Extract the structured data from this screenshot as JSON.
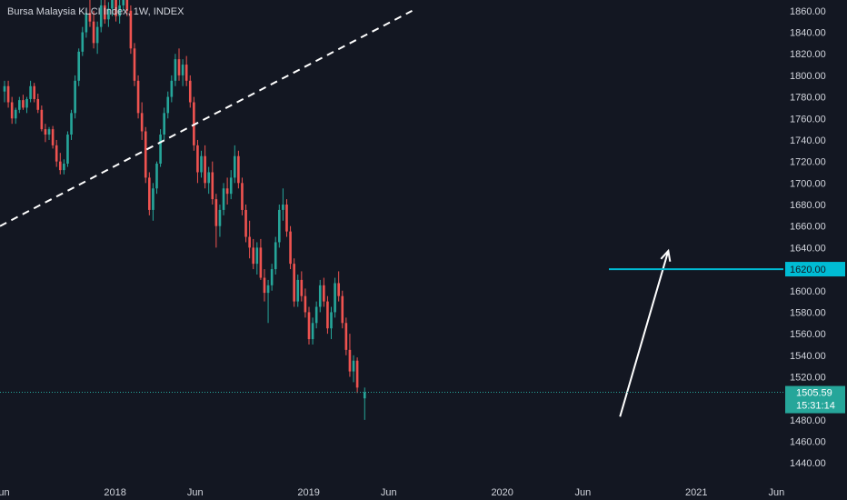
{
  "title": "Bursa Malaysia KLCI Index, 1W, INDEX",
  "colors": {
    "background": "#131722",
    "up": "#26a69a",
    "down": "#ef5350",
    "text": "#d1d4dc",
    "cyan": "#00bcd4",
    "white": "#ffffff",
    "last_price": "#26a69a"
  },
  "chart_data": {
    "type": "candlestick",
    "title": "Bursa Malaysia KLCI Index, 1W, INDEX",
    "ylim": [
      1425,
      1870
    ],
    "y_ticks": [
      1860,
      1840,
      1820,
      1800,
      1780,
      1760,
      1740,
      1720,
      1700,
      1680,
      1660,
      1640,
      1620,
      1600,
      1580,
      1560,
      1540,
      1520,
      1500,
      1480,
      1460,
      1440
    ],
    "y_tick_labels": [
      "1860.00",
      "1840.00",
      "1820.00",
      "1800.00",
      "1780.00",
      "1760.00",
      "1740.00",
      "1720.00",
      "1700.00",
      "1680.00",
      "1660.00",
      "1640.00",
      "1620.00",
      "1600.00",
      "1580.00",
      "1560.00",
      "1540.00",
      "1520.00",
      "1500.00",
      "1480.00",
      "1460.00",
      "1440.00"
    ],
    "x_range": [
      "2017-05-29",
      "2021-06-14"
    ],
    "x_ticks": [
      {
        "date": "2017-06-01",
        "label": "Jun"
      },
      {
        "date": "2018-01-01",
        "label": "2018"
      },
      {
        "date": "2018-06-01",
        "label": "Jun"
      },
      {
        "date": "2019-01-01",
        "label": "2019"
      },
      {
        "date": "2019-06-01",
        "label": "Jun"
      },
      {
        "date": "2020-01-01",
        "label": "2020"
      },
      {
        "date": "2020-06-01",
        "label": "Jun"
      },
      {
        "date": "2021-01-01",
        "label": "2021"
      },
      {
        "date": "2021-06-01",
        "label": "Jun"
      }
    ],
    "start_date": "2017-05-29",
    "candles": [
      [
        1785,
        1795,
        1775,
        1790
      ],
      [
        1790,
        1795,
        1770,
        1775
      ],
      [
        1775,
        1780,
        1755,
        1760
      ],
      [
        1760,
        1770,
        1755,
        1768
      ],
      [
        1768,
        1780,
        1765,
        1777
      ],
      [
        1777,
        1782,
        1768,
        1770
      ],
      [
        1770,
        1780,
        1765,
        1778
      ],
      [
        1778,
        1795,
        1775,
        1790
      ],
      [
        1790,
        1793,
        1775,
        1778
      ],
      [
        1778,
        1783,
        1765,
        1768
      ],
      [
        1768,
        1772,
        1748,
        1750
      ],
      [
        1750,
        1755,
        1738,
        1745
      ],
      [
        1745,
        1752,
        1740,
        1750
      ],
      [
        1750,
        1753,
        1732,
        1735
      ],
      [
        1735,
        1740,
        1715,
        1720
      ],
      [
        1720,
        1728,
        1708,
        1712
      ],
      [
        1712,
        1722,
        1708,
        1718
      ],
      [
        1718,
        1748,
        1715,
        1745
      ],
      [
        1745,
        1768,
        1740,
        1765
      ],
      [
        1765,
        1800,
        1760,
        1795
      ],
      [
        1795,
        1825,
        1790,
        1822
      ],
      [
        1822,
        1845,
        1818,
        1840
      ],
      [
        1840,
        1862,
        1835,
        1858
      ],
      [
        1858,
        1875,
        1845,
        1850
      ],
      [
        1850,
        1860,
        1825,
        1830
      ],
      [
        1830,
        1850,
        1820,
        1845
      ],
      [
        1845,
        1870,
        1840,
        1865
      ],
      [
        1865,
        1875,
        1848,
        1852
      ],
      [
        1852,
        1868,
        1845,
        1862
      ],
      [
        1862,
        1880,
        1855,
        1872
      ],
      [
        1872,
        1878,
        1850,
        1855
      ],
      [
        1855,
        1870,
        1848,
        1865
      ],
      [
        1865,
        1890,
        1860,
        1880
      ],
      [
        1880,
        1885,
        1855,
        1860
      ],
      [
        1860,
        1865,
        1820,
        1825
      ],
      [
        1825,
        1830,
        1790,
        1795
      ],
      [
        1795,
        1800,
        1760,
        1765
      ],
      [
        1765,
        1775,
        1740,
        1748
      ],
      [
        1748,
        1752,
        1700,
        1705
      ],
      [
        1705,
        1710,
        1670,
        1675
      ],
      [
        1675,
        1700,
        1665,
        1695
      ],
      [
        1695,
        1720,
        1690,
        1718
      ],
      [
        1718,
        1750,
        1715,
        1745
      ],
      [
        1745,
        1770,
        1740,
        1765
      ],
      [
        1765,
        1785,
        1760,
        1780
      ],
      [
        1780,
        1800,
        1775,
        1795
      ],
      [
        1795,
        1820,
        1790,
        1815
      ],
      [
        1815,
        1825,
        1795,
        1800
      ],
      [
        1800,
        1815,
        1790,
        1810
      ],
      [
        1810,
        1818,
        1790,
        1795
      ],
      [
        1795,
        1800,
        1770,
        1775
      ],
      [
        1775,
        1780,
        1730,
        1735
      ],
      [
        1735,
        1740,
        1700,
        1710
      ],
      [
        1710,
        1730,
        1705,
        1725
      ],
      [
        1725,
        1735,
        1695,
        1700
      ],
      [
        1700,
        1715,
        1690,
        1710
      ],
      [
        1710,
        1720,
        1680,
        1685
      ],
      [
        1685,
        1690,
        1640,
        1660
      ],
      [
        1660,
        1680,
        1650,
        1675
      ],
      [
        1675,
        1700,
        1670,
        1695
      ],
      [
        1695,
        1705,
        1680,
        1690
      ],
      [
        1690,
        1712,
        1685,
        1705
      ],
      [
        1705,
        1735,
        1700,
        1725
      ],
      [
        1725,
        1730,
        1695,
        1700
      ],
      [
        1700,
        1705,
        1670,
        1675
      ],
      [
        1675,
        1680,
        1645,
        1650
      ],
      [
        1650,
        1665,
        1630,
        1640
      ],
      [
        1640,
        1648,
        1620,
        1625
      ],
      [
        1625,
        1645,
        1615,
        1640
      ],
      [
        1640,
        1648,
        1610,
        1612
      ],
      [
        1612,
        1620,
        1590,
        1598
      ],
      [
        1598,
        1610,
        1570,
        1605
      ],
      [
        1605,
        1625,
        1600,
        1620
      ],
      [
        1620,
        1650,
        1615,
        1645
      ],
      [
        1645,
        1680,
        1640,
        1675
      ],
      [
        1675,
        1695,
        1665,
        1680
      ],
      [
        1680,
        1685,
        1650,
        1655
      ],
      [
        1655,
        1660,
        1620,
        1625
      ],
      [
        1625,
        1630,
        1585,
        1590
      ],
      [
        1590,
        1615,
        1585,
        1610
      ],
      [
        1610,
        1618,
        1590,
        1595
      ],
      [
        1595,
        1602,
        1575,
        1580
      ],
      [
        1580,
        1585,
        1550,
        1555
      ],
      [
        1555,
        1575,
        1550,
        1570
      ],
      [
        1570,
        1590,
        1565,
        1585
      ],
      [
        1585,
        1610,
        1580,
        1605
      ],
      [
        1605,
        1612,
        1585,
        1590
      ],
      [
        1590,
        1595,
        1560,
        1565
      ],
      [
        1565,
        1585,
        1555,
        1580
      ],
      [
        1580,
        1612,
        1575,
        1607
      ],
      [
        1607,
        1618,
        1590,
        1595
      ],
      [
        1595,
        1600,
        1565,
        1570
      ],
      [
        1570,
        1575,
        1540,
        1545
      ],
      [
        1545,
        1560,
        1520,
        1525
      ],
      [
        1525,
        1540,
        1515,
        1535
      ],
      [
        1535,
        1538,
        1505,
        1510
      ],
      null,
      [
        1500,
        1510,
        1480,
        1505.59
      ]
    ],
    "trendlines": [
      {
        "name": "dashed-uptrend",
        "style": "dashed",
        "color": "#ffffff",
        "from": [
          "2017-05-29",
          1660
        ],
        "to": [
          "2019-07-15",
          1860
        ]
      },
      {
        "name": "projection-arrow",
        "style": "arrow",
        "color": "#ffffff",
        "from": [
          "2020-08-10",
          1483
        ],
        "to": [
          "2020-11-09",
          1637
        ]
      }
    ],
    "horizontal_line": {
      "value": 1620,
      "label": "1620.00",
      "from": "2020-07-20",
      "color": "#00bcd4"
    },
    "last_price": {
      "value": 1505.59,
      "label": "1505.59",
      "countdown": "15:31:14"
    }
  }
}
